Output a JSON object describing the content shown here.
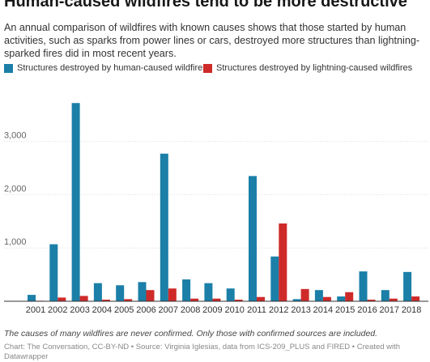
{
  "title": "Human-caused wildfires tend to be more destructive",
  "subtitle": "An annual comparison of wildfires with known causes shows that those started by human activities, such as sparks from power lines or cars, destroyed more structures than lightning-sparked fires did in most recent years.",
  "note": "The causes of many wildfires are never confirmed. Only those with confirmed sources are included.",
  "source": "Chart: The Conversation, CC-BY-ND • Source: Virginia Iglesias, data from ICS-209_PLUS and FIRED • Created with Datawrapper",
  "colors": {
    "human": "#1b7fa8",
    "lightning": "#cf2a2a",
    "grid": "#dcdcdc",
    "baseline": "#333333"
  },
  "chart_data": {
    "type": "bar",
    "title": "Human-caused wildfires tend to be more destructive",
    "categories": [
      "2001",
      "2002",
      "2003",
      "2004",
      "2005",
      "2006",
      "2007",
      "2008",
      "2009",
      "2010",
      "2011",
      "2012",
      "2013",
      "2014",
      "2015",
      "2016",
      "2017",
      "2018"
    ],
    "series": [
      {
        "name": "Structures destroyed by human-caused wildfires",
        "values": [
          120,
          1070,
          3720,
          340,
          300,
          360,
          2770,
          410,
          340,
          240,
          2350,
          840,
          40,
          210,
          90,
          560,
          210,
          550
        ]
      },
      {
        "name": "Structures destroyed by lightning-caused wildfires",
        "values": [
          10,
          70,
          100,
          30,
          40,
          210,
          240,
          50,
          50,
          30,
          80,
          1460,
          230,
          80,
          170,
          30,
          50,
          90
        ]
      }
    ],
    "yticks": [
      1000,
      2000,
      3000
    ],
    "ytick_labels": [
      "1,000",
      "2,000",
      "3,000"
    ],
    "ylim": [
      0,
      3800
    ],
    "grid": true,
    "legend_position": "top-left"
  }
}
